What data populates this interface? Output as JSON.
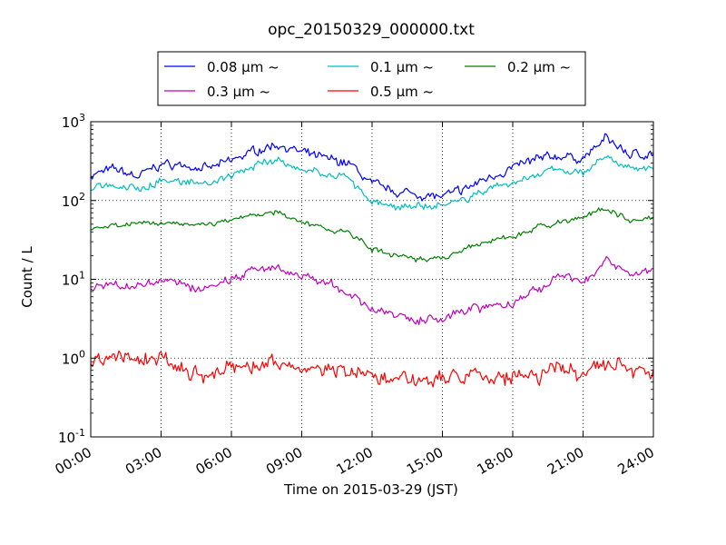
{
  "chart_data": {
    "type": "line",
    "title": "opc_20150329_000000.txt",
    "xlabel": "Time on 2015-03-29 (JST)",
    "ylabel": "Count / L",
    "x_unit": "hours",
    "xlim": [
      0,
      24
    ],
    "ylim": [
      0.1,
      1000
    ],
    "yscale": "log",
    "grid": true,
    "legend_position": "top",
    "x_ticks": [
      "00:00",
      "03:00",
      "06:00",
      "09:00",
      "12:00",
      "15:00",
      "18:00",
      "21:00",
      "24:00"
    ],
    "y_ticks": [
      {
        "value": 0.1,
        "base": "10",
        "exp": "-1"
      },
      {
        "value": 1,
        "base": "10",
        "exp": "0"
      },
      {
        "value": 10,
        "base": "10",
        "exp": "1"
      },
      {
        "value": 100,
        "base": "10",
        "exp": "2"
      },
      {
        "value": 1000,
        "base": "10",
        "exp": "3"
      }
    ],
    "x": [
      0,
      1,
      2,
      3,
      4,
      5,
      6,
      7,
      8,
      9,
      10,
      11,
      12,
      13,
      14,
      15,
      16,
      17,
      18,
      19,
      20,
      21,
      22,
      23,
      24
    ],
    "series": [
      {
        "name": "0.08 μm ~",
        "color": "#0000ff",
        "amp": 0.07,
        "values": [
          210,
          250,
          200,
          290,
          280,
          250,
          320,
          430,
          520,
          400,
          340,
          300,
          160,
          130,
          120,
          110,
          140,
          200,
          260,
          330,
          370,
          340,
          620,
          380,
          400
        ]
      },
      {
        "name": "0.1 μm ~",
        "color": "#00bfbf",
        "amp": 0.06,
        "values": [
          150,
          150,
          140,
          180,
          170,
          160,
          200,
          280,
          340,
          250,
          220,
          190,
          95,
          85,
          80,
          85,
          105,
          145,
          170,
          210,
          250,
          230,
          380,
          250,
          260
        ]
      },
      {
        "name": "0.2 μm ~",
        "color": "#008000",
        "amp": 0.04,
        "values": [
          45,
          48,
          50,
          52,
          50,
          48,
          58,
          65,
          70,
          52,
          45,
          40,
          24,
          20,
          18,
          18,
          24,
          30,
          35,
          45,
          55,
          60,
          80,
          55,
          60
        ]
      },
      {
        "name": "0.3 μm ~",
        "color": "#bf00bf",
        "amp": 0.07,
        "values": [
          8,
          8.5,
          8,
          10,
          8,
          7.5,
          10,
          13,
          15,
          10,
          9,
          7,
          4,
          3.5,
          3,
          3.2,
          4,
          4.5,
          5,
          7,
          11,
          9,
          18,
          11,
          14
        ]
      },
      {
        "name": "0.5 μm ~",
        "color": "#ff0000",
        "amp": 0.12,
        "values": [
          0.9,
          1.0,
          0.95,
          1.0,
          0.65,
          0.6,
          0.75,
          0.8,
          0.85,
          0.75,
          0.7,
          0.65,
          0.55,
          0.52,
          0.5,
          0.5,
          0.55,
          0.6,
          0.55,
          0.6,
          0.75,
          0.6,
          0.9,
          0.7,
          0.7
        ]
      }
    ]
  }
}
